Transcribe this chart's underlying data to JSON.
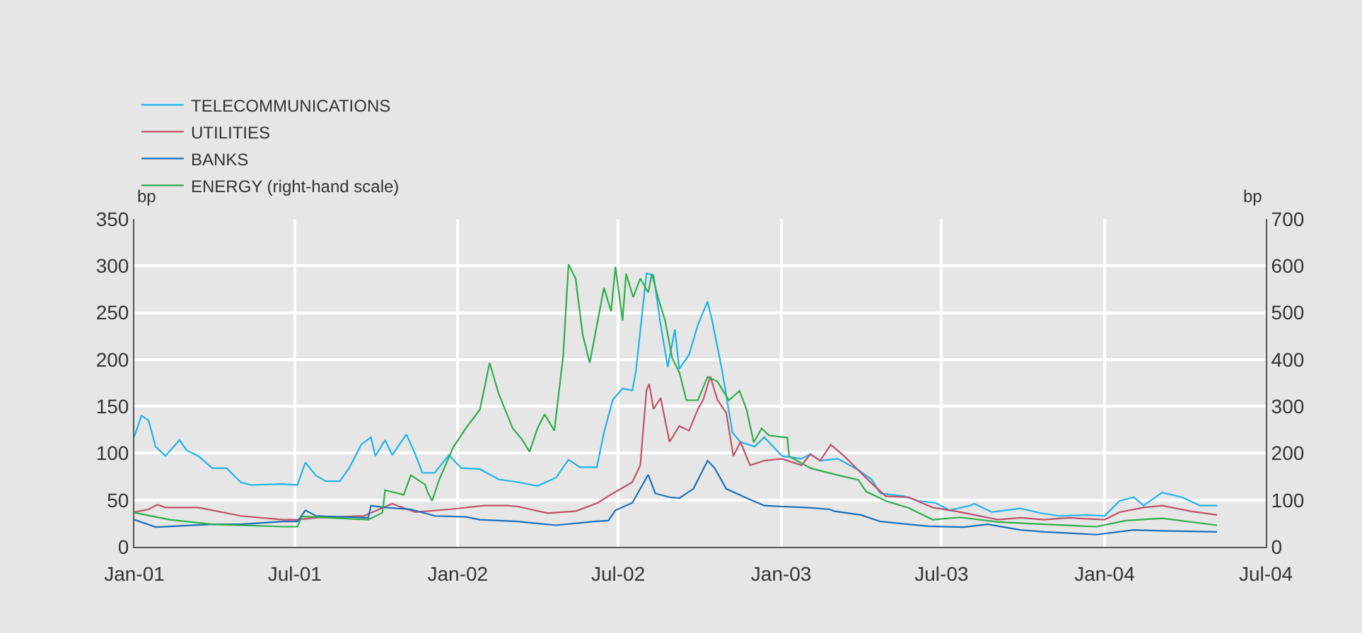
{
  "chart_data": {
    "type": "line",
    "ylabel": "bp",
    "y2label": "bp",
    "xlim": [
      "2001-01-01",
      "2004-07-01"
    ],
    "xticks": [
      {
        "value": "2001-01-01",
        "label": "Jan-01"
      },
      {
        "value": "2001-07-01",
        "label": "Jul-01"
      },
      {
        "value": "2002-01-01",
        "label": "Jan-02"
      },
      {
        "value": "2002-07-01",
        "label": "Jul-02"
      },
      {
        "value": "2003-01-01",
        "label": "Jan-03"
      },
      {
        "value": "2003-07-01",
        "label": "Jul-03"
      },
      {
        "value": "2004-01-01",
        "label": "Jan-04"
      },
      {
        "value": "2004-07-01",
        "label": "Jul-04"
      }
    ],
    "ylim": [
      0,
      350
    ],
    "yticks": [
      0,
      50,
      100,
      150,
      200,
      250,
      300,
      350
    ],
    "y2lim": [
      0,
      700
    ],
    "y2ticks": [
      0,
      100,
      200,
      300,
      400,
      500,
      600,
      700
    ],
    "grid": true,
    "legend": "top left",
    "marker": "none",
    "line_style": "solid",
    "series": [
      {
        "name": "TELECOMMUNICATIONS",
        "color": "#1fb4ea",
        "x": [
          "2001-01-01",
          "2001-01-09",
          "2001-01-17",
          "2001-01-25",
          "2001-02-05",
          "2001-02-21",
          "2001-03-01",
          "2001-03-14",
          "2001-03-30",
          "2001-04-15",
          "2001-05-01",
          "2001-05-12",
          "2001-06-18",
          "2001-07-04",
          "2001-07-13",
          "2001-07-25",
          "2001-08-05",
          "2001-08-21",
          "2001-09-01",
          "2001-09-14",
          "2001-09-25",
          "2001-09-30",
          "2001-10-11",
          "2001-10-19",
          "2001-11-04",
          "2001-11-14",
          "2001-11-22",
          "2001-12-06",
          "2001-12-22",
          "2002-01-05",
          "2002-01-26",
          "2002-02-16",
          "2002-03-10",
          "2002-04-01",
          "2002-04-22",
          "2002-05-06",
          "2002-05-19",
          "2002-06-07",
          "2002-06-15",
          "2002-06-25",
          "2002-07-06",
          "2002-07-17",
          "2002-07-21",
          "2002-08-02",
          "2002-08-10",
          "2002-08-18",
          "2002-08-26",
          "2002-09-03",
          "2002-09-08",
          "2002-09-19",
          "2002-09-29",
          "2002-10-10",
          "2002-10-15",
          "2002-10-26",
          "2002-11-07",
          "2002-11-16",
          "2002-12-02",
          "2002-12-13",
          "2003-01-02",
          "2003-01-24",
          "2003-02-03",
          "2003-02-14",
          "2003-03-06",
          "2003-03-29",
          "2003-04-13",
          "2003-04-23",
          "2003-05-20",
          "2003-06-05",
          "2003-06-24",
          "2003-07-10",
          "2003-08-02",
          "2003-08-07",
          "2003-08-27",
          "2003-09-28",
          "2003-10-21",
          "2003-11-11",
          "2003-12-12",
          "2004-01-01",
          "2004-01-18",
          "2004-02-03",
          "2004-02-14",
          "2004-03-06",
          "2004-03-28",
          "2004-04-18",
          "2004-05-07"
        ],
        "values": [
          118,
          140,
          135,
          107,
          97,
          114,
          103,
          97,
          84,
          84,
          69,
          66,
          67,
          66,
          90,
          76,
          70,
          70,
          85,
          109,
          117,
          97,
          114,
          98,
          120,
          99,
          79,
          79,
          98,
          84,
          83,
          72,
          69,
          65,
          74,
          93,
          85,
          85,
          122,
          157,
          169,
          167,
          187,
          292,
          290,
          237,
          192,
          232,
          190,
          205,
          237,
          262,
          242,
          190,
          122,
          112,
          107,
          117,
          97,
          94,
          99,
          92,
          94,
          82,
          72,
          57,
          54,
          49,
          47,
          39,
          44,
          46,
          37,
          41,
          36,
          33,
          34,
          33,
          49,
          53,
          44,
          58,
          53,
          44,
          44
        ]
      },
      {
        "name": "UTILITIES",
        "color": "#c0506a",
        "x": [
          "2001-01-01",
          "2001-01-17",
          "2001-01-27",
          "2001-02-05",
          "2001-03-14",
          "2001-05-01",
          "2001-06-18",
          "2001-07-04",
          "2001-07-25",
          "2001-09-17",
          "2001-10-19",
          "2001-11-14",
          "2001-12-22",
          "2002-01-31",
          "2002-02-25",
          "2002-03-10",
          "2002-04-12",
          "2002-05-14",
          "2002-06-08",
          "2002-06-25",
          "2002-07-17",
          "2002-07-26",
          "2002-08-02",
          "2002-08-05",
          "2002-08-10",
          "2002-08-18",
          "2002-08-28",
          "2002-09-08",
          "2002-09-19",
          "2002-09-29",
          "2002-10-05",
          "2002-10-13",
          "2002-10-21",
          "2002-10-31",
          "2002-11-08",
          "2002-11-16",
          "2002-11-27",
          "2002-12-13",
          "2003-01-02",
          "2003-01-24",
          "2003-02-03",
          "2003-02-14",
          "2003-02-26",
          "2003-03-13",
          "2003-04-01",
          "2003-04-13",
          "2003-04-29",
          "2003-05-25",
          "2003-06-21",
          "2003-07-17",
          "2003-08-07",
          "2003-09-03",
          "2003-09-28",
          "2003-10-25",
          "2003-11-22",
          "2004-01-01",
          "2004-01-18",
          "2004-02-14",
          "2004-03-06",
          "2004-04-07",
          "2004-05-07"
        ],
        "values": [
          37,
          40,
          45,
          42,
          42,
          33,
          29,
          29,
          31,
          33,
          46,
          37,
          40,
          44,
          44,
          43,
          36,
          38,
          47,
          57,
          69,
          87,
          167,
          174,
          147,
          159,
          112,
          129,
          124,
          147,
          157,
          182,
          157,
          143,
          97,
          112,
          87,
          92,
          94,
          87,
          99,
          92,
          109,
          97,
          79,
          68,
          54,
          53,
          42,
          38,
          34,
          29,
          31,
          29,
          31,
          29,
          37,
          42,
          44,
          38,
          34
        ]
      },
      {
        "name": "BANKS",
        "color": "#1a6fb8",
        "x": [
          "2001-01-01",
          "2001-01-25",
          "2001-03-30",
          "2001-05-01",
          "2001-06-18",
          "2001-07-04",
          "2001-07-13",
          "2001-07-25",
          "2001-09-22",
          "2001-09-25",
          "2001-10-11",
          "2001-11-09",
          "2001-12-06",
          "2002-01-10",
          "2002-01-26",
          "2002-03-10",
          "2002-04-22",
          "2002-06-04",
          "2002-06-20",
          "2002-06-28",
          "2002-07-17",
          "2002-08-04",
          "2002-08-12",
          "2002-08-28",
          "2002-09-08",
          "2002-09-24",
          "2002-10-10",
          "2002-10-18",
          "2002-10-31",
          "2002-11-23",
          "2002-12-13",
          "2003-01-02",
          "2003-01-29",
          "2003-02-25",
          "2003-03-02",
          "2003-04-01",
          "2003-04-23",
          "2003-06-16",
          "2003-07-26",
          "2003-08-22",
          "2003-09-28",
          "2003-10-25",
          "2003-12-23",
          "2004-02-03",
          "2004-03-06",
          "2004-05-07"
        ],
        "values": [
          29,
          21,
          24,
          24,
          27,
          27,
          39,
          33,
          31,
          44,
          42,
          40,
          33,
          32,
          29,
          27,
          23,
          27,
          28,
          39,
          47,
          77,
          57,
          53,
          52,
          62,
          92,
          84,
          62,
          52,
          44,
          43,
          42,
          40,
          38,
          34,
          27,
          22,
          21,
          24,
          18,
          16,
          13,
          18,
          17,
          16
        ]
      },
      {
        "name": "ENERGY (right-hand scale)",
        "color": "#2fae4a",
        "axis": "y2",
        "x": [
          "2001-01-01",
          "2001-02-10",
          "2001-03-30",
          "2001-06-18",
          "2001-07-04",
          "2001-07-09",
          "2001-09-22",
          "2001-10-08",
          "2001-10-11",
          "2001-11-01",
          "2001-11-09",
          "2001-11-25",
          "2001-11-28",
          "2001-12-03",
          "2001-12-11",
          "2001-12-27",
          "2002-01-10",
          "2002-01-26",
          "2002-02-06",
          "2002-02-16",
          "2002-03-04",
          "2002-03-15",
          "2002-03-23",
          "2002-04-01",
          "2002-04-09",
          "2002-04-20",
          "2002-04-30",
          "2002-05-06",
          "2002-05-14",
          "2002-05-22",
          "2002-05-30",
          "2002-06-07",
          "2002-06-15",
          "2002-06-23",
          "2002-06-28",
          "2002-07-06",
          "2002-07-10",
          "2002-07-18",
          "2002-07-26",
          "2002-08-04",
          "2002-08-08",
          "2002-08-15",
          "2002-08-23",
          "2002-08-31",
          "2002-09-08",
          "2002-09-16",
          "2002-09-29",
          "2002-10-10",
          "2002-10-21",
          "2002-11-03",
          "2002-11-15",
          "2002-11-23",
          "2002-12-01",
          "2002-12-10",
          "2002-12-18",
          "2003-01-08",
          "2003-01-10",
          "2003-02-03",
          "2003-03-06",
          "2003-03-29",
          "2003-04-07",
          "2003-04-29",
          "2003-05-25",
          "2003-06-21",
          "2003-07-22",
          "2003-09-03",
          "2003-10-25",
          "2003-12-23",
          "2004-01-25",
          "2004-03-06",
          "2004-05-07"
        ],
        "values": [
          73,
          58,
          48,
          43,
          43,
          65,
          58,
          73,
          121,
          111,
          153,
          133,
          117,
          98,
          143,
          213,
          253,
          293,
          393,
          328,
          253,
          228,
          203,
          253,
          283,
          248,
          408,
          603,
          573,
          453,
          393,
          473,
          553,
          503,
          598,
          483,
          583,
          533,
          573,
          543,
          583,
          533,
          483,
          403,
          373,
          313,
          313,
          363,
          353,
          313,
          333,
          293,
          223,
          253,
          238,
          233,
          193,
          168,
          153,
          143,
          118,
          98,
          83,
          58,
          63,
          53,
          48,
          43,
          56,
          61,
          46
        ]
      }
    ]
  }
}
